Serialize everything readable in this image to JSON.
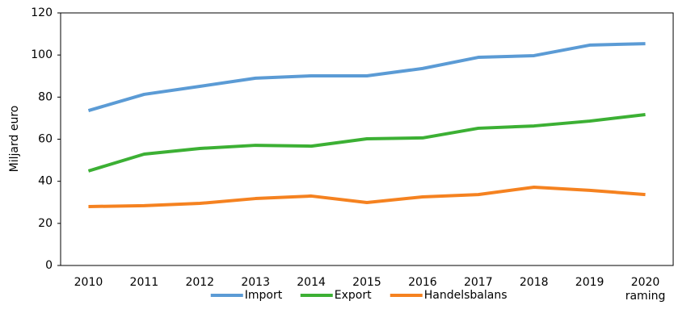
{
  "chart_data": {
    "type": "line",
    "y_label": "Miljard euro",
    "categories": [
      "2010",
      "2011",
      "2012",
      "2013",
      "2014",
      "2015",
      "2016",
      "2017",
      "2018",
      "2019",
      "2020\nraming"
    ],
    "series": [
      {
        "name": "Import",
        "color": "#5b9bd5",
        "values": [
          73.6,
          81.3,
          85.1,
          89,
          90.1,
          90.1,
          93.6,
          98.9,
          99.7,
          104.7,
          105.4
        ]
      },
      {
        "name": "Export",
        "color": "#3cb034",
        "values": [
          44.9,
          52.9,
          55.6,
          57.1,
          56.7,
          60.2,
          60.6,
          65.2,
          66.3,
          68.6,
          71.7
        ]
      },
      {
        "name": "Handelsbalans",
        "color": "#f58220",
        "values": [
          28,
          28.4,
          29.5,
          31.8,
          33,
          29.9,
          32.6,
          33.7,
          37.2,
          35.7,
          33.7
        ]
      }
    ],
    "ylim": [
      0,
      120
    ],
    "yticks": [
      0,
      20,
      40,
      60,
      80,
      100,
      120
    ],
    "grid": false,
    "legend": "bottom"
  }
}
